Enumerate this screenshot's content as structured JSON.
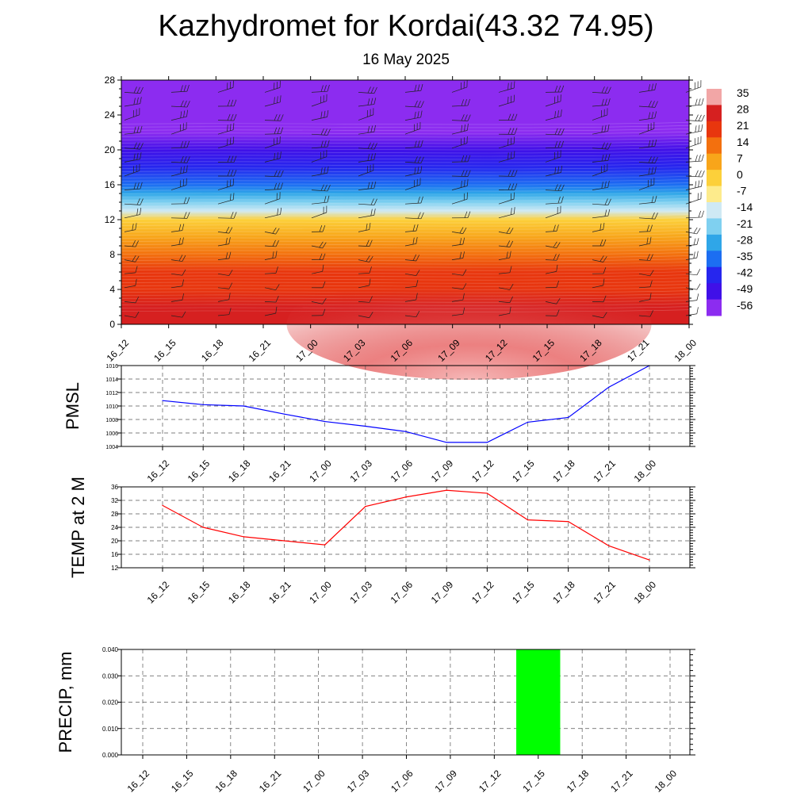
{
  "header": {
    "title": "Kazhydromet for Kordai(43.32 74.95)",
    "subtitle": "16 May 2025"
  },
  "colorbar": {
    "labels": [
      "35",
      "28",
      "21",
      "14",
      "7",
      "0",
      "-7",
      "-14",
      "-21",
      "-28",
      "-35",
      "-42",
      "-49",
      "-56"
    ],
    "colors": [
      "#f2a6a6",
      "#d62020",
      "#e8360e",
      "#f3700e",
      "#f8a51a",
      "#fcd03a",
      "#fdeb8c",
      "#cfe9f4",
      "#7fd0f0",
      "#2fa6e8",
      "#1c6ef2",
      "#2626ee",
      "#4010e8",
      "#8c2cf0"
    ]
  },
  "chart_data": [
    {
      "id": "cross_section",
      "type": "heatmap",
      "description_values": "temperature-like field vs time (x) and level (y), with wind barbs",
      "categories": [
        "16_12",
        "16_15",
        "16_18",
        "16_21",
        "17_00",
        "17_03",
        "17_06",
        "17_09",
        "17_12",
        "17_15",
        "17_18",
        "17_21",
        "18_00"
      ],
      "y_ticks": [
        "0",
        "4",
        "8",
        "12",
        "16",
        "20",
        "24",
        "28"
      ],
      "ylim": [
        0,
        28
      ],
      "bands": [
        {
          "y": 0,
          "value": 30
        },
        {
          "y": 2,
          "value": 28
        },
        {
          "y": 4,
          "value": 24
        },
        {
          "y": 6,
          "value": 20
        },
        {
          "y": 8,
          "value": 14
        },
        {
          "y": 10,
          "value": 7
        },
        {
          "y": 12,
          "value": 0
        },
        {
          "y": 13,
          "value": -14
        },
        {
          "y": 14,
          "value": -21
        },
        {
          "y": 15,
          "value": -28
        },
        {
          "y": 16,
          "value": -35
        },
        {
          "y": 18,
          "value": -42
        },
        {
          "y": 20,
          "value": -49
        },
        {
          "y": 22,
          "value": -56
        },
        {
          "y": 28,
          "value": -56
        }
      ],
      "warm_core": {
        "x_center": "17_10",
        "value": 35
      }
    },
    {
      "id": "pmsl",
      "type": "line",
      "ylabel": "PMSL",
      "categories": [
        "16_12",
        "16_15",
        "16_18",
        "16_21",
        "17_00",
        "17_03",
        "17_06",
        "17_09",
        "17_12",
        "17_15",
        "17_18",
        "17_21",
        "18_00"
      ],
      "values": [
        1010.8,
        1010.2,
        1010.0,
        1008.8,
        1007.7,
        1007.0,
        1006.2,
        1004.6,
        1004.6,
        1007.6,
        1008.3,
        1012.8,
        1016.0
      ],
      "ylim": [
        1004,
        1016
      ],
      "yticks": [
        "1004",
        "1006",
        "1008",
        "1010",
        "1012",
        "1014",
        "1016"
      ],
      "color": "#0000ff"
    },
    {
      "id": "temp2m",
      "type": "line",
      "ylabel": "TEMP at 2 M",
      "categories": [
        "16_12",
        "16_15",
        "16_18",
        "16_21",
        "17_00",
        "17_03",
        "17_06",
        "17_09",
        "17_12",
        "17_15",
        "17_18",
        "17_21",
        "18_00"
      ],
      "values": [
        30.5,
        24.0,
        21.2,
        20.0,
        18.8,
        30.2,
        33.0,
        35.0,
        34.1,
        26.2,
        25.7,
        18.5,
        14.3
      ],
      "ylim": [
        12,
        36
      ],
      "yticks": [
        "12",
        "16",
        "20",
        "24",
        "28",
        "32",
        "36"
      ],
      "color": "#ff0000"
    },
    {
      "id": "precip",
      "type": "bar",
      "ylabel": "PRECIP, mm",
      "categories": [
        "16_12",
        "16_15",
        "16_18",
        "16_21",
        "17_00",
        "17_03",
        "17_06",
        "17_09",
        "17_12",
        "17_15",
        "17_18",
        "17_21",
        "18_00"
      ],
      "values": [
        0,
        0,
        0,
        0,
        0,
        0,
        0,
        0,
        0,
        0.04,
        0,
        0,
        0
      ],
      "ylim": [
        0,
        0.04
      ],
      "yticks": [
        "0.000",
        "0.010",
        "0.020",
        "0.030",
        "0.040"
      ],
      "color": "#00ff00"
    }
  ]
}
